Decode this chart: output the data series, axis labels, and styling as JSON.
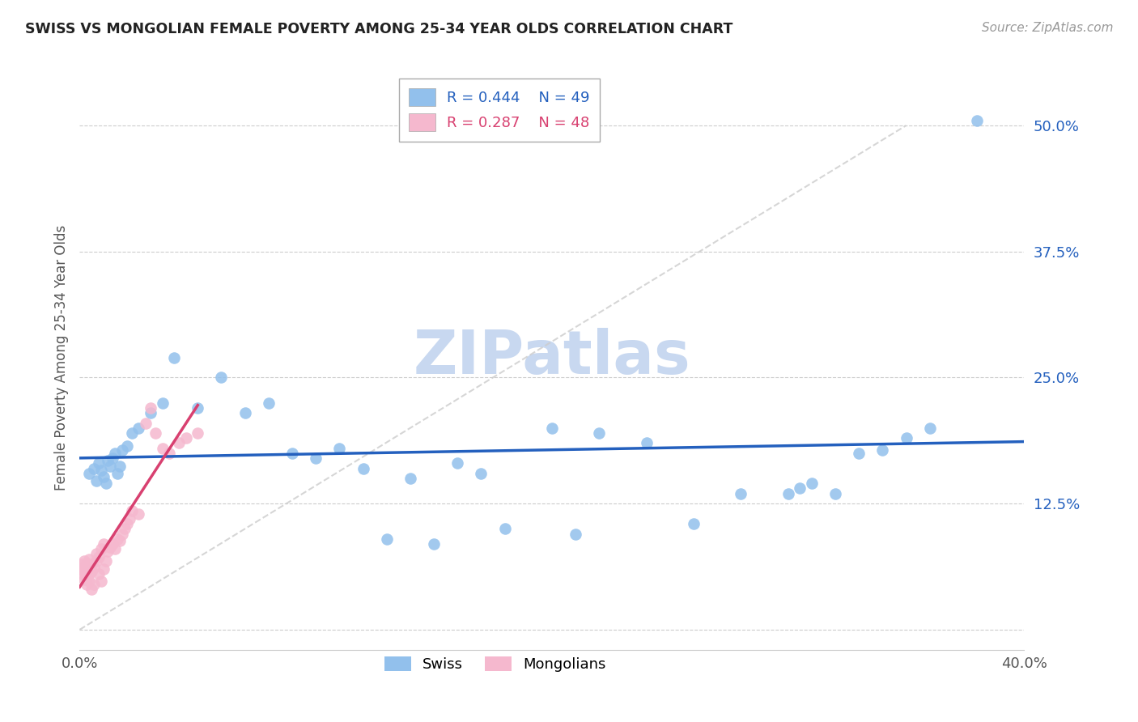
{
  "title": "SWISS VS MONGOLIAN FEMALE POVERTY AMONG 25-34 YEAR OLDS CORRELATION CHART",
  "source": "Source: ZipAtlas.com",
  "ylabel": "Female Poverty Among 25-34 Year Olds",
  "xlim": [
    0.0,
    0.4
  ],
  "ylim": [
    -0.02,
    0.56
  ],
  "yticks": [
    0.0,
    0.125,
    0.25,
    0.375,
    0.5
  ],
  "ytick_labels": [
    "",
    "12.5%",
    "25.0%",
    "37.5%",
    "50.0%"
  ],
  "xticks": [
    0.0,
    0.4
  ],
  "xtick_labels": [
    "0.0%",
    "40.0%"
  ],
  "swiss_color": "#92C0EC",
  "mongolian_color": "#F5B8CE",
  "swiss_line_color": "#2460BE",
  "mongolian_line_color": "#D84070",
  "diagonal_color": "#CCCCCC",
  "watermark": "ZIPatlas",
  "watermark_color": "#C8D8F0",
  "swiss_x": [
    0.004,
    0.006,
    0.007,
    0.008,
    0.009,
    0.01,
    0.011,
    0.012,
    0.013,
    0.014,
    0.015,
    0.016,
    0.017,
    0.018,
    0.02,
    0.022,
    0.025,
    0.03,
    0.035,
    0.04,
    0.05,
    0.06,
    0.07,
    0.08,
    0.09,
    0.1,
    0.11,
    0.12,
    0.13,
    0.14,
    0.15,
    0.16,
    0.17,
    0.18,
    0.2,
    0.21,
    0.22,
    0.24,
    0.26,
    0.28,
    0.3,
    0.305,
    0.31,
    0.32,
    0.33,
    0.34,
    0.35,
    0.36,
    0.38
  ],
  "swiss_y": [
    0.155,
    0.16,
    0.148,
    0.165,
    0.158,
    0.152,
    0.145,
    0.168,
    0.162,
    0.17,
    0.175,
    0.155,
    0.162,
    0.178,
    0.182,
    0.195,
    0.2,
    0.215,
    0.225,
    0.27,
    0.22,
    0.25,
    0.215,
    0.225,
    0.175,
    0.17,
    0.18,
    0.16,
    0.09,
    0.15,
    0.085,
    0.165,
    0.155,
    0.1,
    0.2,
    0.095,
    0.195,
    0.185,
    0.105,
    0.135,
    0.135,
    0.14,
    0.145,
    0.135,
    0.175,
    0.178,
    0.19,
    0.2,
    0.505
  ],
  "mongolian_x": [
    0.001,
    0.001,
    0.001,
    0.002,
    0.002,
    0.002,
    0.002,
    0.003,
    0.003,
    0.003,
    0.003,
    0.004,
    0.004,
    0.004,
    0.005,
    0.005,
    0.005,
    0.006,
    0.006,
    0.007,
    0.007,
    0.008,
    0.008,
    0.009,
    0.009,
    0.01,
    0.01,
    0.011,
    0.012,
    0.013,
    0.014,
    0.015,
    0.016,
    0.017,
    0.018,
    0.019,
    0.02,
    0.021,
    0.022,
    0.025,
    0.028,
    0.03,
    0.032,
    0.035,
    0.038,
    0.042,
    0.045,
    0.05
  ],
  "mongolian_y": [
    0.055,
    0.06,
    0.065,
    0.05,
    0.058,
    0.062,
    0.068,
    0.045,
    0.052,
    0.06,
    0.065,
    0.048,
    0.055,
    0.07,
    0.04,
    0.058,
    0.065,
    0.045,
    0.062,
    0.068,
    0.075,
    0.055,
    0.072,
    0.048,
    0.08,
    0.06,
    0.085,
    0.068,
    0.078,
    0.082,
    0.085,
    0.08,
    0.09,
    0.088,
    0.095,
    0.1,
    0.105,
    0.11,
    0.118,
    0.115,
    0.205,
    0.22,
    0.195,
    0.18,
    0.175,
    0.185,
    0.19,
    0.195
  ]
}
